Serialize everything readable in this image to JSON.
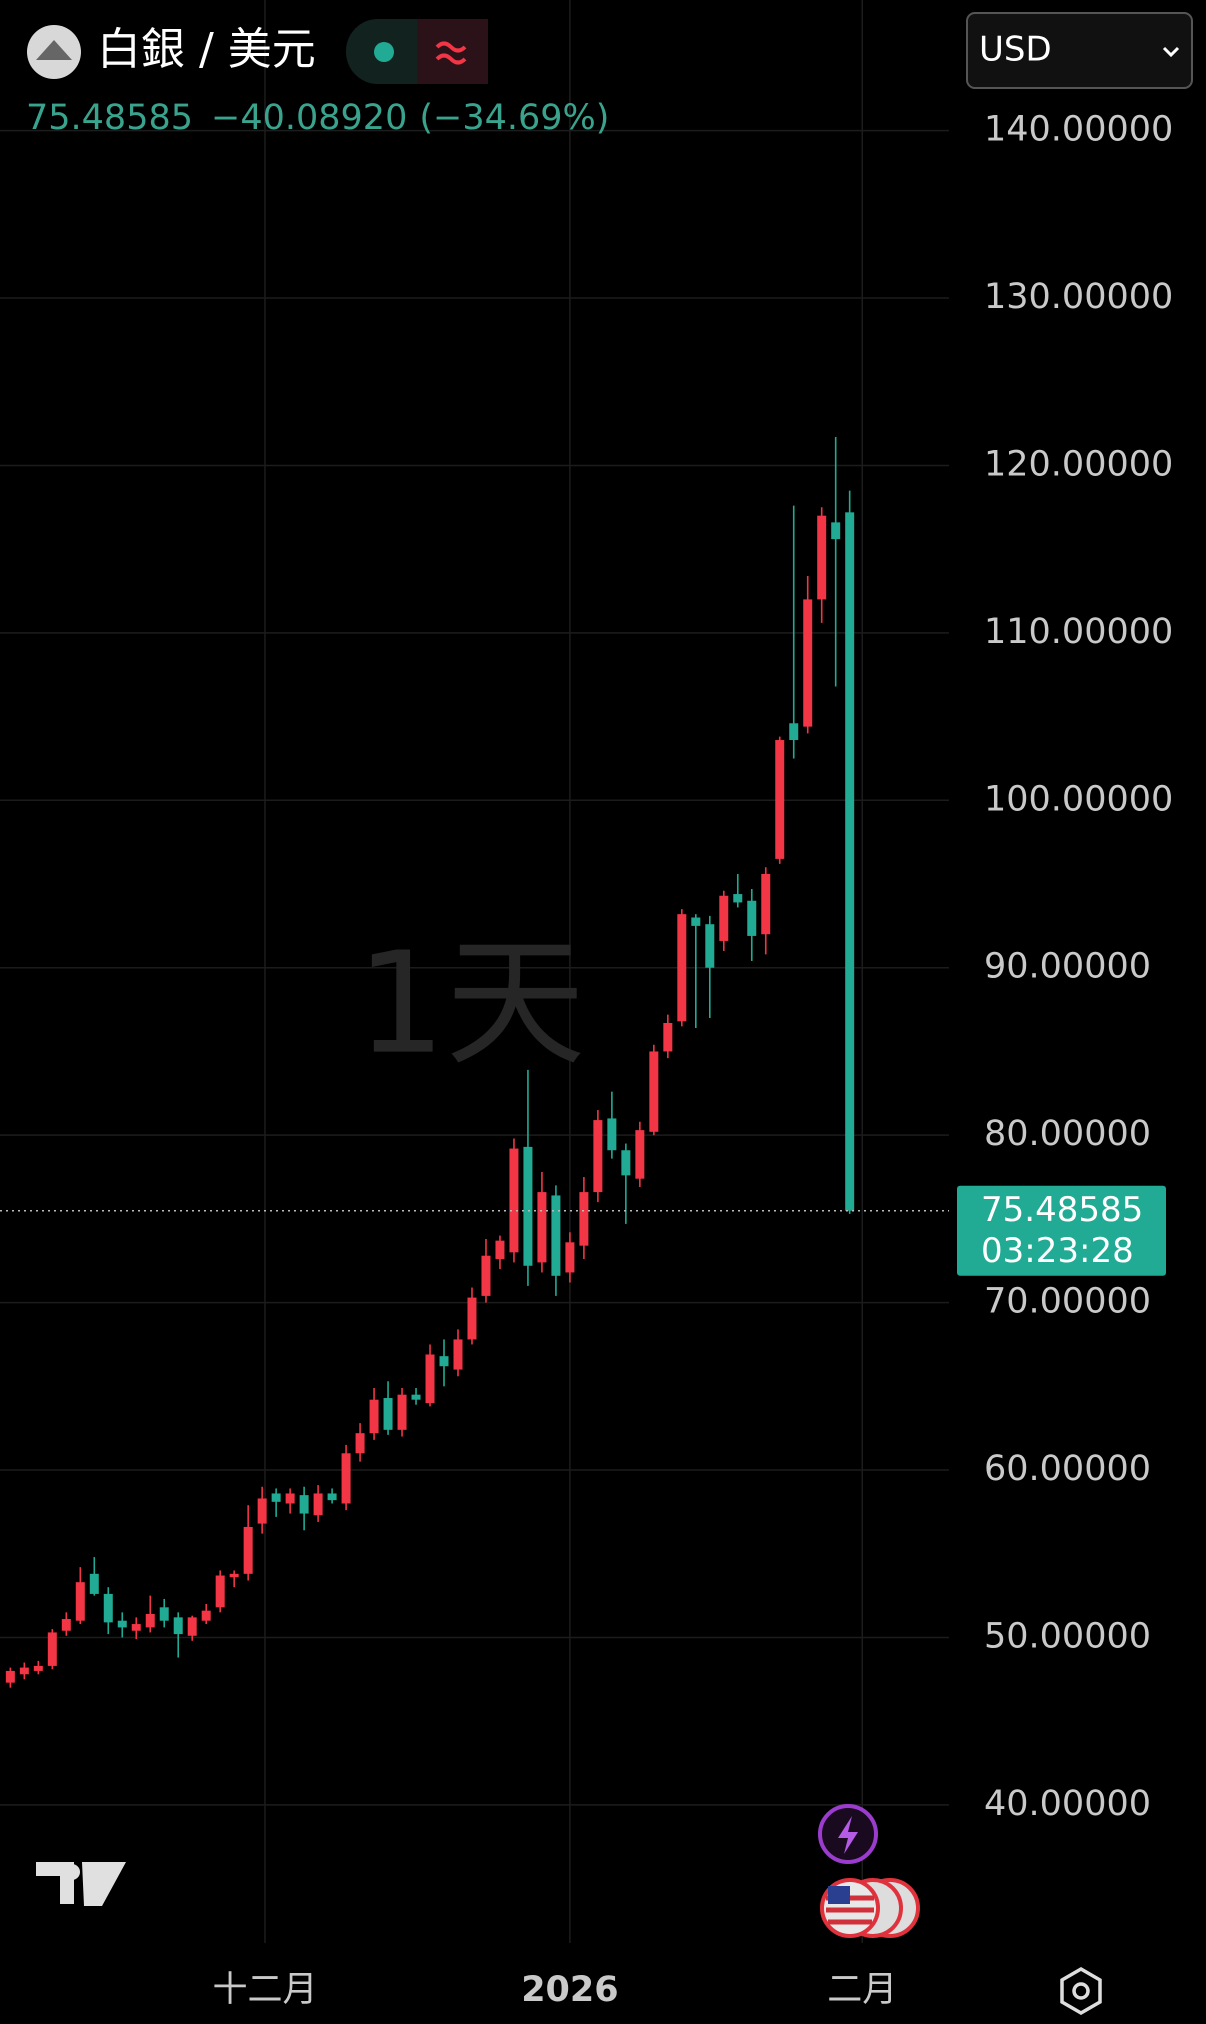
{
  "symbol": "白銀 / 美元",
  "change": "−40.08920",
  "change_percent": "(−34.69%)",
  "currency": "USD",
  "interval": "1天",
  "countdown": "03:23:28",
  "chart_data": {
    "type": "candlestick",
    "up_color": "#f23645",
    "down_color": "#22ab94",
    "open": [
      47.3,
      47.8,
      48.0,
      48.3,
      50.4,
      51.0,
      53.8,
      52.6,
      51.0,
      50.4,
      50.6,
      51.8,
      51.2,
      50.1,
      51.0,
      51.8,
      53.6,
      53.8,
      56.8,
      58.6,
      58.0,
      58.5,
      57.3,
      58.6,
      58.0,
      61.0,
      62.2,
      64.3,
      62.4,
      64.5,
      64.0,
      66.8,
      66.0,
      67.8,
      70.4,
      72.6,
      73.0,
      79.3,
      72.4,
      76.4,
      71.8,
      73.4,
      76.6,
      81.0,
      79.1,
      77.4,
      80.2,
      85.0,
      86.8,
      93.0,
      92.6,
      91.6,
      94.4,
      94.0,
      92.0,
      96.5,
      104.6,
      104.4,
      112.0,
      116.6,
      117.2
    ],
    "high": [
      48.2,
      48.5,
      48.6,
      50.5,
      51.5,
      54.2,
      54.8,
      53.0,
      51.5,
      51.2,
      52.5,
      52.3,
      51.5,
      51.3,
      52.0,
      54.0,
      54.0,
      57.9,
      59.0,
      58.9,
      58.9,
      59.0,
      59.1,
      58.9,
      61.5,
      62.8,
      64.9,
      65.3,
      64.9,
      64.9,
      67.5,
      67.8,
      68.4,
      70.9,
      73.8,
      74.0,
      79.8,
      83.9,
      77.8,
      77.0,
      74.2,
      77.5,
      81.5,
      82.6,
      79.5,
      80.8,
      85.4,
      87.2,
      93.5,
      93.2,
      93.1,
      94.6,
      95.6,
      94.7,
      96.0,
      103.8,
      117.6,
      113.4,
      117.5,
      121.7,
      118.5
    ],
    "low": [
      47.0,
      47.5,
      47.8,
      48.1,
      50.1,
      50.8,
      52.5,
      50.2,
      50.0,
      49.9,
      50.3,
      50.6,
      48.8,
      49.8,
      50.8,
      51.5,
      53.0,
      53.4,
      56.2,
      57.2,
      57.4,
      56.4,
      56.9,
      58.0,
      57.6,
      60.5,
      61.8,
      62.1,
      62.0,
      63.9,
      63.8,
      65.0,
      65.6,
      67.5,
      70.0,
      72.0,
      72.4,
      71.0,
      71.8,
      70.4,
      71.2,
      72.6,
      76.0,
      78.6,
      74.7,
      76.9,
      80.0,
      84.6,
      86.5,
      86.4,
      87.0,
      91.0,
      93.6,
      90.4,
      90.8,
      96.2,
      102.5,
      104.0,
      110.6,
      106.8,
      75.3
    ],
    "close": [
      48.0,
      48.2,
      48.3,
      50.3,
      51.1,
      53.3,
      52.6,
      50.9,
      50.6,
      50.8,
      51.4,
      51.0,
      50.2,
      51.2,
      51.6,
      53.7,
      53.8,
      56.6,
      58.3,
      58.1,
      58.6,
      57.4,
      58.6,
      58.2,
      61.0,
      62.2,
      64.2,
      62.4,
      64.5,
      64.2,
      66.9,
      66.2,
      67.8,
      70.3,
      72.8,
      73.7,
      79.2,
      72.2,
      76.6,
      71.6,
      73.6,
      76.6,
      80.9,
      79.1,
      77.6,
      80.3,
      85.0,
      86.7,
      93.2,
      92.5,
      90.0,
      94.3,
      93.9,
      91.9,
      95.6,
      103.6,
      103.6,
      112.0,
      117.0,
      115.6,
      75.48585
    ],
    "xlim": [
      -0.74,
      67.1
    ],
    "xticks": [
      {
        "value": 18.2,
        "label": "十二月"
      },
      {
        "value": 40.0,
        "label": "2026"
      },
      {
        "value": 60.9,
        "label": "二月"
      }
    ],
    "ylim": [
      31.75,
      147.8
    ],
    "yticks": [
      {
        "value": 40,
        "label": "40.00000"
      },
      {
        "value": 50,
        "label": "50.00000"
      },
      {
        "value": 60,
        "label": "60.00000"
      },
      {
        "value": 70,
        "label": "70.00000"
      },
      {
        "value": 80,
        "label": "80.00000"
      },
      {
        "value": 90,
        "label": "90.00000"
      },
      {
        "value": 100,
        "label": "100.00000"
      },
      {
        "value": 110,
        "label": "110.00000"
      },
      {
        "value": 120,
        "label": "120.00000"
      },
      {
        "value": 130,
        "label": "130.00000"
      },
      {
        "value": 140,
        "label": "140.00000"
      }
    ],
    "grid": true
  }
}
